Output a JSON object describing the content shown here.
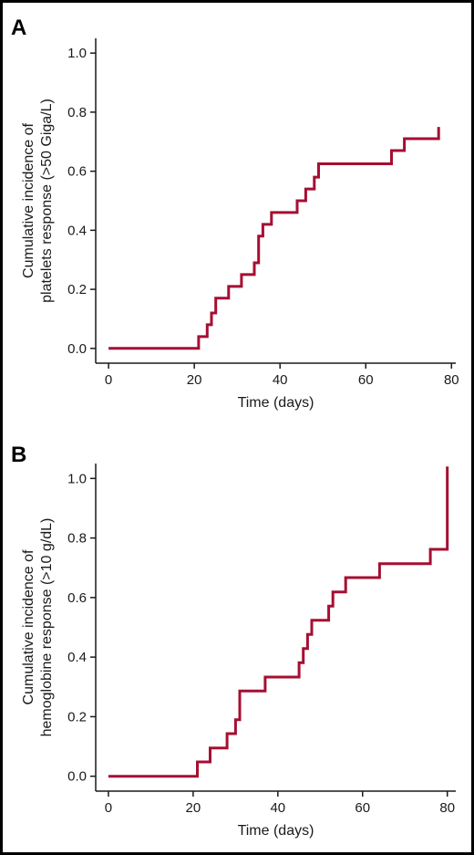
{
  "colors": {
    "curve": "#a50f32",
    "axis": "#1a1a1a",
    "frame": "#000000"
  },
  "chart_data": [
    {
      "type": "line",
      "step": true,
      "panel_label": "A",
      "xlabel": "Time (days)",
      "ylabel_lines": [
        "Cumulative incidence of",
        "platelets response (>50 Giga/L)"
      ],
      "xlim": [
        -3,
        81
      ],
      "ylim": [
        -0.05,
        1.05
      ],
      "xticks": [
        0,
        20,
        40,
        60,
        80
      ],
      "yticks": [
        0.0,
        0.2,
        0.4,
        0.6,
        0.8,
        1.0
      ],
      "xtick_labels": [
        "0",
        "20",
        "40",
        "60",
        "80"
      ],
      "ytick_labels": [
        "0.0",
        "0.2",
        "0.4",
        "0.6",
        "0.8",
        "1.0"
      ],
      "grid": false,
      "series": [
        {
          "x": [
            0,
            21,
            23,
            24,
            25,
            28,
            31,
            34,
            35,
            36,
            38,
            44,
            46,
            48,
            49,
            66,
            69,
            77,
            77
          ],
          "y": [
            0.0,
            0.04,
            0.08,
            0.12,
            0.17,
            0.21,
            0.25,
            0.29,
            0.38,
            0.42,
            0.46,
            0.5,
            0.54,
            0.58,
            0.625,
            0.67,
            0.71,
            0.71,
            0.75
          ]
        }
      ]
    },
    {
      "type": "line",
      "step": true,
      "panel_label": "B",
      "xlabel": "Time (days)",
      "ylabel_lines": [
        "Cumulative incidence of",
        "hemoglobine response (>10 g/dL)"
      ],
      "xlim": [
        -3,
        82
      ],
      "ylim": [
        -0.05,
        1.05
      ],
      "xticks": [
        0,
        20,
        40,
        60,
        80
      ],
      "yticks": [
        0.0,
        0.2,
        0.4,
        0.6,
        0.8,
        1.0
      ],
      "xtick_labels": [
        "0",
        "20",
        "40",
        "60",
        "80"
      ],
      "ytick_labels": [
        "0.0",
        "0.2",
        "0.4",
        "0.6",
        "0.8",
        "1.0"
      ],
      "grid": false,
      "series": [
        {
          "x": [
            0,
            21,
            24,
            28,
            30,
            31,
            37,
            45,
            46,
            47,
            48,
            49,
            52,
            53,
            54,
            56,
            64,
            76,
            80,
            80
          ],
          "y": [
            0.0,
            0.048,
            0.095,
            0.143,
            0.19,
            0.286,
            0.333,
            0.381,
            0.429,
            0.476,
            0.524,
            0.524,
            0.571,
            0.619,
            0.619,
            0.667,
            0.714,
            0.762,
            0.762,
            1.04
          ]
        }
      ]
    }
  ]
}
